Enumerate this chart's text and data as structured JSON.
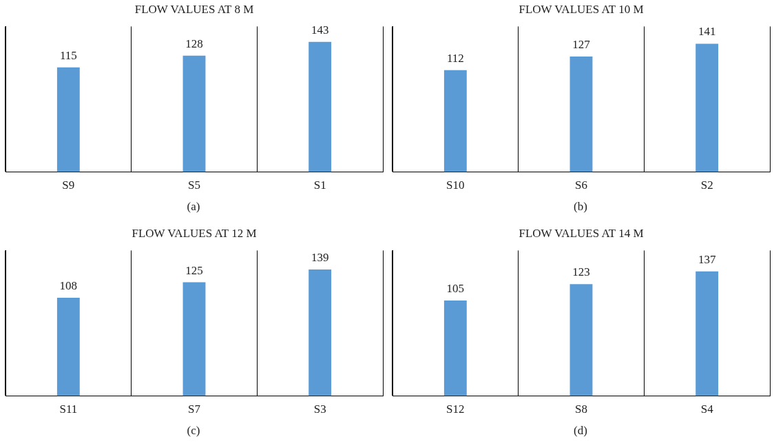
{
  "chart_data": [
    {
      "type": "bar",
      "title": "FLOW VALUES AT 8 M",
      "categories": [
        "S9",
        "S5",
        "S1"
      ],
      "values": [
        115,
        128,
        143
      ],
      "color": "#5b9bd5",
      "data_labels": true,
      "grid": "x",
      "annotations": [
        "(a)"
      ]
    },
    {
      "type": "bar",
      "title": "FLOW VALUES AT 10 M",
      "categories": [
        "S10",
        "S6",
        "S2"
      ],
      "values": [
        112,
        127,
        141
      ],
      "color": "#5b9bd5",
      "data_labels": true,
      "grid": "x",
      "annotations": [
        "(b)"
      ]
    },
    {
      "type": "bar",
      "title": "FLOW VALUES AT 12 M",
      "categories": [
        "S11",
        "S7",
        "S3"
      ],
      "values": [
        108,
        125,
        139
      ],
      "color": "#5b9bd5",
      "data_labels": true,
      "grid": "x",
      "annotations": [
        "(c)"
      ]
    },
    {
      "type": "bar",
      "title": "FLOW VALUES AT 14 M",
      "categories": [
        "S12",
        "S8",
        "S4"
      ],
      "values": [
        105,
        123,
        137
      ],
      "color": "#5b9bd5",
      "data_labels": true,
      "grid": "x",
      "annotations": [
        "(d)"
      ]
    }
  ]
}
